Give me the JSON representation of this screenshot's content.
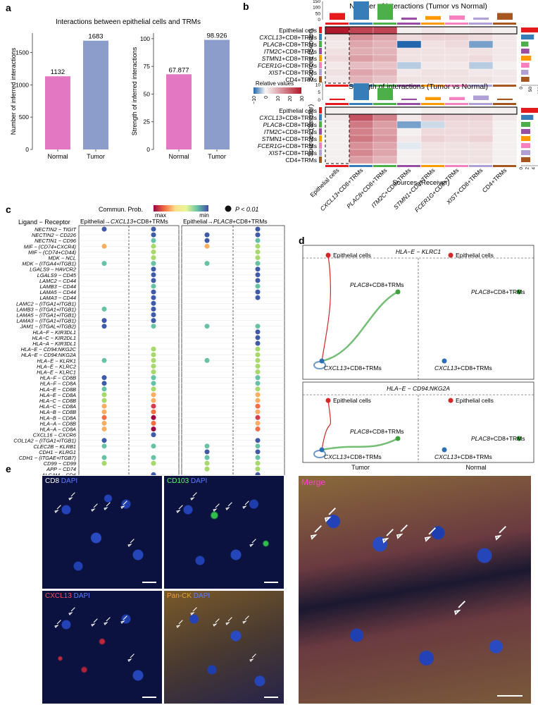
{
  "panel_letters": {
    "a": "a",
    "b": "b",
    "c": "c",
    "d": "d",
    "e": "e"
  },
  "colors": {
    "normal": "#e377c2",
    "tumor": "#8c9dcc",
    "heat_high": "#b2182b",
    "heat_low": "#2166ac",
    "net_red": "#d62728",
    "net_blue": "#2e6fb4",
    "net_green": "#3aa33a",
    "cell_colors": [
      "#e41a1c",
      "#377eb8",
      "#4daf4a",
      "#984ea3",
      "#ff9900",
      "#f781bf",
      "#b0a0d6",
      "#a6561f"
    ]
  },
  "panel_a": {
    "title": "Interactions between epithelial cells and TRMs",
    "charts": [
      {
        "ylabel": "Number of inferred interactions",
        "categories": [
          "Normal",
          "Tumor"
        ],
        "values": [
          1132,
          1683
        ],
        "value_labels": [
          "1132",
          "1683"
        ],
        "ticks": [
          "0",
          "500",
          "1000",
          "1500"
        ],
        "tick_values": [
          0,
          500,
          1000,
          1500
        ],
        "ymax": 1800
      },
      {
        "ylabel": "Strength of inferred interactions",
        "categories": [
          "Normal",
          "Tumor"
        ],
        "values": [
          67.877,
          98.926
        ],
        "value_labels": [
          "67.877",
          "98.926"
        ],
        "ticks": [
          "0",
          "25",
          "50",
          "75",
          "100"
        ],
        "tick_values": [
          0,
          25,
          50,
          75,
          100
        ],
        "ymax": 105
      }
    ]
  },
  "panel_b": {
    "title_top": "Number of interactions (Tumor vs Normal)",
    "title_bottom": "Strength of interactions (Tumor vs Normal)",
    "row_labels": [
      {
        "em": "",
        "rest": "Epithelial cells"
      },
      {
        "em": "CXCL13",
        "rest": "+CD8+TRMs"
      },
      {
        "em": "PLAC8",
        "rest": "+CD8+TRMs"
      },
      {
        "em": "ITM2C",
        "rest": "+CD8+TRMs"
      },
      {
        "em": "STMN1",
        "rest": "+CD8+TRMs"
      },
      {
        "em": "FCER1G",
        "rest": "+CD8+TRMs"
      },
      {
        "em": "XIST",
        "rest": "+CD8+TRMs"
      },
      {
        "em": "",
        "rest": "CD4+TRMs"
      }
    ],
    "col_labels": [
      "Epithelial cells",
      "CXCL13+CD8+TRMs",
      "PLAC8+CD8+TRMs",
      "ITM2C+CD8+TRMs",
      "STMN1+CD8+TRMs",
      "FCER1G+CD8+TRMs",
      "XIST+CD8+TRMs",
      "CD4+TRMs"
    ],
    "sender_label": "Sources (Sender)",
    "receiver_label": "Sources (Receiver)",
    "legend_title": "Relative values",
    "legend_ticks": [
      "−10",
      "0",
      "10",
      "20",
      "30"
    ],
    "top_ticks_top": [
      "0",
      "50",
      "100",
      "150"
    ],
    "top_ticks_bottom": [
      "0",
      "5",
      "10"
    ],
    "right_ticks_top": [
      "0",
      "50",
      "100"
    ],
    "right_ticks_bottom": [
      "0",
      "2",
      "4"
    ]
  },
  "heatmap_top": {
    "values": [
      [
        30,
        24,
        24,
        1,
        2,
        1,
        2,
        1
      ],
      [
        3,
        14,
        11,
        4,
        5,
        5,
        4,
        2
      ],
      [
        2,
        11,
        9,
        -10,
        3,
        4,
        -6,
        2
      ],
      [
        3,
        10,
        9,
        3,
        3,
        3,
        3,
        2
      ],
      [
        4,
        12,
        10,
        3,
        3,
        3,
        4,
        2
      ],
      [
        2,
        8,
        7,
        -3,
        2,
        2,
        -3,
        1
      ],
      [
        3,
        11,
        9,
        2,
        3,
        3,
        2,
        2
      ],
      [
        2,
        9,
        7,
        3,
        3,
        3,
        3,
        2
      ]
    ],
    "col_bars": [
      55,
      150,
      130,
      18,
      30,
      35,
      18,
      55
    ],
    "row_bars": [
      100,
      70,
      40,
      45,
      55,
      45,
      40,
      45
    ]
  },
  "heatmap_bottom": {
    "values": [
      [
        1,
        1,
        1,
        0,
        1,
        1,
        1,
        1
      ],
      [
        2,
        22,
        16,
        2,
        6,
        5,
        5,
        2
      ],
      [
        1,
        17,
        12,
        -6,
        -2,
        4,
        4,
        1
      ],
      [
        1,
        16,
        12,
        1,
        4,
        4,
        4,
        1
      ],
      [
        1,
        17,
        13,
        2,
        5,
        4,
        5,
        1
      ],
      [
        1,
        14,
        11,
        -1,
        3,
        3,
        3,
        1
      ],
      [
        1,
        15,
        11,
        1,
        3,
        3,
        3,
        1
      ],
      [
        1,
        12,
        9,
        1,
        3,
        3,
        3,
        1
      ]
    ],
    "col_bars": [
      1,
      11,
      8,
      1,
      2,
      2,
      3,
      1
    ],
    "row_bars": [
      6,
      4,
      3,
      3,
      3,
      3,
      3,
      3
    ]
  },
  "panel_c": {
    "header": "Ligand − Receptor",
    "legend_label": "Commun. Prob.",
    "legend_max": "max",
    "legend_min": "min",
    "pvalue_label": "P < 0.01",
    "group1": {
      "prefix": "Epithelial",
      "em": "CXCL13",
      "suffix": "+CD8+TRMs"
    },
    "group2": {
      "prefix": "Epithelial",
      "em": "PLAC8",
      "suffix": "+CD8+TRMs"
    },
    "x_labels": [
      "Normal",
      "Tumor",
      "Normal",
      "Tumor"
    ],
    "pairs": [
      {
        "label": "NECTIN2 − TIGIT",
        "v": [
          6,
          6,
          null,
          6
        ]
      },
      {
        "label": "NECTIN2 − CD226",
        "v": [
          null,
          6,
          6,
          6
        ]
      },
      {
        "label": "NECTIN1 − CD96",
        "v": [
          null,
          5,
          6,
          5
        ]
      },
      {
        "label": "MIF − (CD74+CXCR4)",
        "v": [
          3,
          4,
          3,
          4
        ]
      },
      {
        "label": "MIF − (CD74+CD44)",
        "v": [
          null,
          4,
          null,
          4
        ]
      },
      {
        "label": "MDK − NCL",
        "v": [
          null,
          4,
          null,
          4
        ]
      },
      {
        "label": "MDK − (ITGA4+ITGB1)",
        "v": [
          5,
          5,
          5,
          5
        ]
      },
      {
        "label": "LGALS9 − HAVCR2",
        "v": [
          null,
          6,
          null,
          6
        ]
      },
      {
        "label": "LGALS9 − CD45",
        "v": [
          null,
          6,
          null,
          6
        ]
      },
      {
        "label": "LAMC2 − CD44",
        "v": [
          null,
          6,
          null,
          6
        ]
      },
      {
        "label": "LAMB3 − CD44",
        "v": [
          null,
          5,
          null,
          5
        ]
      },
      {
        "label": "LAMA5 − CD44",
        "v": [
          null,
          6,
          null,
          6
        ]
      },
      {
        "label": "LAMA3 − CD44",
        "v": [
          null,
          6,
          null,
          6
        ]
      },
      {
        "label": "LAMC2 − (ITGA1+ITGB1)",
        "v": [
          null,
          6,
          null,
          null
        ]
      },
      {
        "label": "LAMB3 − (ITGA1+ITGB1)",
        "v": [
          5,
          6,
          null,
          null
        ]
      },
      {
        "label": "LAMA5 − (ITGA1+ITGB1)",
        "v": [
          null,
          6,
          null,
          null
        ]
      },
      {
        "label": "LAMA3 − (ITGA1+ITGB1)",
        "v": [
          6,
          6,
          null,
          null
        ]
      },
      {
        "label": "JAM1 − (ITGAL+ITGB2)",
        "v": [
          6,
          5,
          5,
          5
        ]
      },
      {
        "label": "HLA−F − KIR3DL1",
        "v": [
          null,
          null,
          null,
          6
        ]
      },
      {
        "label": "HLA−C − KIR2DL1",
        "v": [
          null,
          null,
          null,
          6
        ]
      },
      {
        "label": "HLA−A − KIR3DL1",
        "v": [
          null,
          null,
          null,
          6
        ]
      },
      {
        "label": "HLA−E − CD94:NKG2C",
        "v": [
          null,
          4,
          null,
          4
        ]
      },
      {
        "label": "HLA−E − CD94:NKG2A",
        "v": [
          null,
          4,
          null,
          4
        ]
      },
      {
        "label": "HLA−E − KLRK1",
        "v": [
          5,
          4,
          5,
          4
        ]
      },
      {
        "label": "HLA−E − KLRC2",
        "v": [
          null,
          4,
          null,
          4
        ]
      },
      {
        "label": "HLA−E − KLRC1",
        "v": [
          null,
          4,
          null,
          4
        ]
      },
      {
        "label": "HLA−F − CD8B",
        "v": [
          6,
          5,
          null,
          5
        ]
      },
      {
        "label": "HLA−F − CD8A",
        "v": [
          6,
          5,
          null,
          5
        ]
      },
      {
        "label": "HLA−E − CD8B",
        "v": [
          5,
          4,
          null,
          4
        ]
      },
      {
        "label": "HLA−E − CD8A",
        "v": [
          4,
          3,
          null,
          3
        ]
      },
      {
        "label": "HLA−C − CD8B",
        "v": [
          4,
          3,
          null,
          3
        ]
      },
      {
        "label": "HLA−C − CD8A",
        "v": [
          3,
          1,
          null,
          2
        ]
      },
      {
        "label": "HLA−B − CD8B",
        "v": [
          3,
          2,
          null,
          3
        ]
      },
      {
        "label": "HLA−B − CD8A",
        "v": [
          2,
          0,
          null,
          1
        ]
      },
      {
        "label": "HLA−A − CD8B",
        "v": [
          3,
          2,
          null,
          3
        ]
      },
      {
        "label": "HLA−A − CD8A",
        "v": [
          3,
          0,
          null,
          2
        ]
      },
      {
        "label": "CXCL16 − CXCR6",
        "v": [
          null,
          6,
          null,
          null
        ]
      },
      {
        "label": "COL1A2 − (ITGA1+ITGB1)",
        "v": [
          6,
          null,
          null,
          6
        ]
      },
      {
        "label": "CLEC2B − KLRB1",
        "v": [
          5,
          5,
          5,
          5
        ]
      },
      {
        "label": "CDH1 − KLRG1",
        "v": [
          null,
          null,
          6,
          6
        ]
      },
      {
        "label": "CDH1 − (ITGAE+ITGB7)",
        "v": [
          5,
          5,
          5,
          5
        ]
      },
      {
        "label": "CD99 − CD99",
        "v": [
          4,
          4,
          4,
          4
        ]
      },
      {
        "label": "APP − CD74",
        "v": [
          null,
          null,
          4,
          4
        ]
      },
      {
        "label": "ALCAM − CD6",
        "v": [
          null,
          6,
          null,
          6
        ]
      }
    ]
  },
  "panel_d": {
    "titles": [
      "HLA−E − KLRC1",
      "HLA−E − CD94:NKG2A"
    ],
    "node_epi": "Epithelial cells",
    "node_plac8": {
      "em": "PLAC8",
      "rest": "+CD8+TRMs"
    },
    "node_cxcl13": {
      "em": "CXCL13",
      "rest": "+CD8+TRMs"
    },
    "x_labels": [
      "Tumor",
      "Normal"
    ]
  },
  "panel_e": {
    "cd8": {
      "marker": "CD8",
      "dapi": "DAPI"
    },
    "cd103": {
      "marker": "CD103",
      "dapi": "DAPI"
    },
    "cxcl13": {
      "marker": "CXCL13",
      "dapi": "DAPI"
    },
    "panck": {
      "marker": "Pan-CK",
      "dapi": "DAPI"
    },
    "merge": {
      "marker": "Merge"
    }
  }
}
